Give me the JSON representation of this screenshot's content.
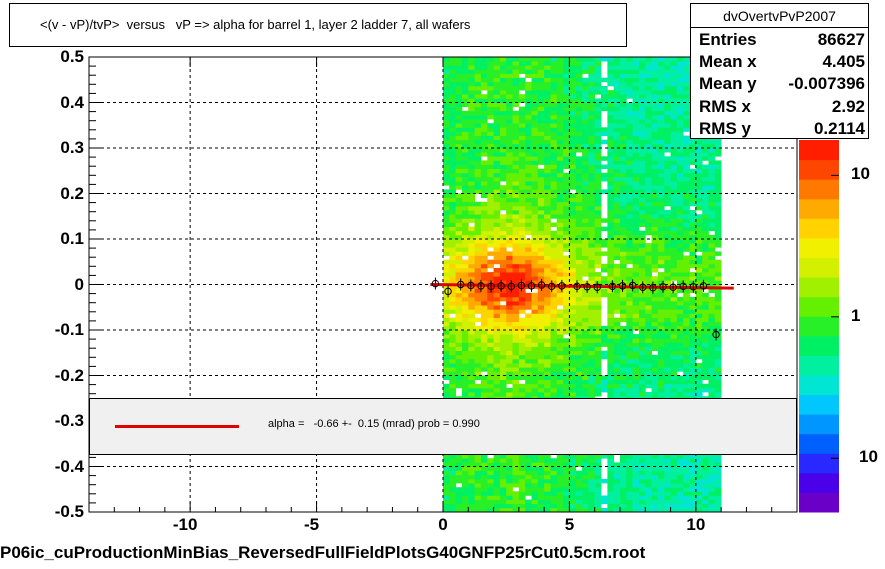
{
  "title": "<(v - vP)/tvP>  versus   vP => alpha for barrel 1, layer 2 ladder 7, all wafers",
  "stats": {
    "name": "dvOvertvPvP2007",
    "rows": [
      {
        "label": "Entries",
        "value": "86627"
      },
      {
        "label": "Mean x",
        "value": "4.405"
      },
      {
        "label": "Mean y",
        "value": "-0.007396"
      },
      {
        "label": "RMS x",
        "value": "2.92"
      },
      {
        "label": "RMS y",
        "value": "0.2114"
      }
    ]
  },
  "fit": {
    "text": "alpha =   -0.66 +-  0.15 (mrad) prob = 0.990",
    "line_color": "#e00000"
  },
  "footer": "P06ic_cuProductionMinBias_ReversedFullFieldPlotsG40GNFP25rCut0.5cm.root",
  "colors": {
    "marker": "#000000"
  },
  "chart_data": {
    "type": "heatmap",
    "xlim": [
      -14,
      14
    ],
    "ylim": [
      -0.5,
      0.5
    ],
    "x_ticks": [
      -10,
      -5,
      0,
      5,
      10
    ],
    "x_tick_labels": [
      "-10",
      "-5",
      "0",
      "5",
      "10"
    ],
    "y_ticks": [
      -0.5,
      -0.4,
      -0.3,
      -0.2,
      -0.1,
      0,
      0.1,
      0.2,
      0.3,
      0.4,
      0.5
    ],
    "y_tick_labels": [
      "-0.5",
      "-0.4",
      "-0.3",
      "-0.2",
      "-0.1",
      "0",
      "0.1",
      "0.2",
      "0.3",
      "0.4",
      "0.5"
    ],
    "grid": true,
    "z_scale": "log",
    "z_tick_labels": [
      {
        "label": "10",
        "z": 10
      },
      {
        "label": "1",
        "z": 1
      },
      {
        "label": "10",
        "z": 0.1
      }
    ],
    "data_x_range": [
      0,
      11
    ],
    "gap_x": [
      [
        4.9,
        5.1
      ],
      [
        6.2,
        6.5
      ]
    ],
    "profile_points": [
      {
        "x": -0.3,
        "y": 0.002
      },
      {
        "x": 0.2,
        "y": -0.015
      },
      {
        "x": 0.7,
        "y": 0.0
      },
      {
        "x": 1.1,
        "y": -0.002
      },
      {
        "x": 1.5,
        "y": -0.003
      },
      {
        "x": 1.9,
        "y": -0.004
      },
      {
        "x": 2.3,
        "y": -0.003
      },
      {
        "x": 2.7,
        "y": -0.004
      },
      {
        "x": 3.1,
        "y": -0.002
      },
      {
        "x": 3.5,
        "y": -0.003
      },
      {
        "x": 3.9,
        "y": -0.001
      },
      {
        "x": 4.3,
        "y": -0.004
      },
      {
        "x": 4.7,
        "y": -0.003
      },
      {
        "x": 5.3,
        "y": -0.004
      },
      {
        "x": 5.7,
        "y": -0.005
      },
      {
        "x": 6.1,
        "y": -0.006
      },
      {
        "x": 6.7,
        "y": -0.004
      },
      {
        "x": 7.1,
        "y": -0.003
      },
      {
        "x": 7.5,
        "y": -0.002
      },
      {
        "x": 7.9,
        "y": -0.006
      },
      {
        "x": 8.3,
        "y": -0.007
      },
      {
        "x": 8.7,
        "y": -0.005
      },
      {
        "x": 9.1,
        "y": -0.006
      },
      {
        "x": 9.5,
        "y": -0.004
      },
      {
        "x": 9.9,
        "y": -0.005
      },
      {
        "x": 10.3,
        "y": -0.003
      },
      {
        "x": 10.8,
        "y": -0.11
      }
    ],
    "fit_line": {
      "x": [
        -0.5,
        11.5
      ],
      "y": [
        0.0,
        -0.008
      ]
    }
  }
}
